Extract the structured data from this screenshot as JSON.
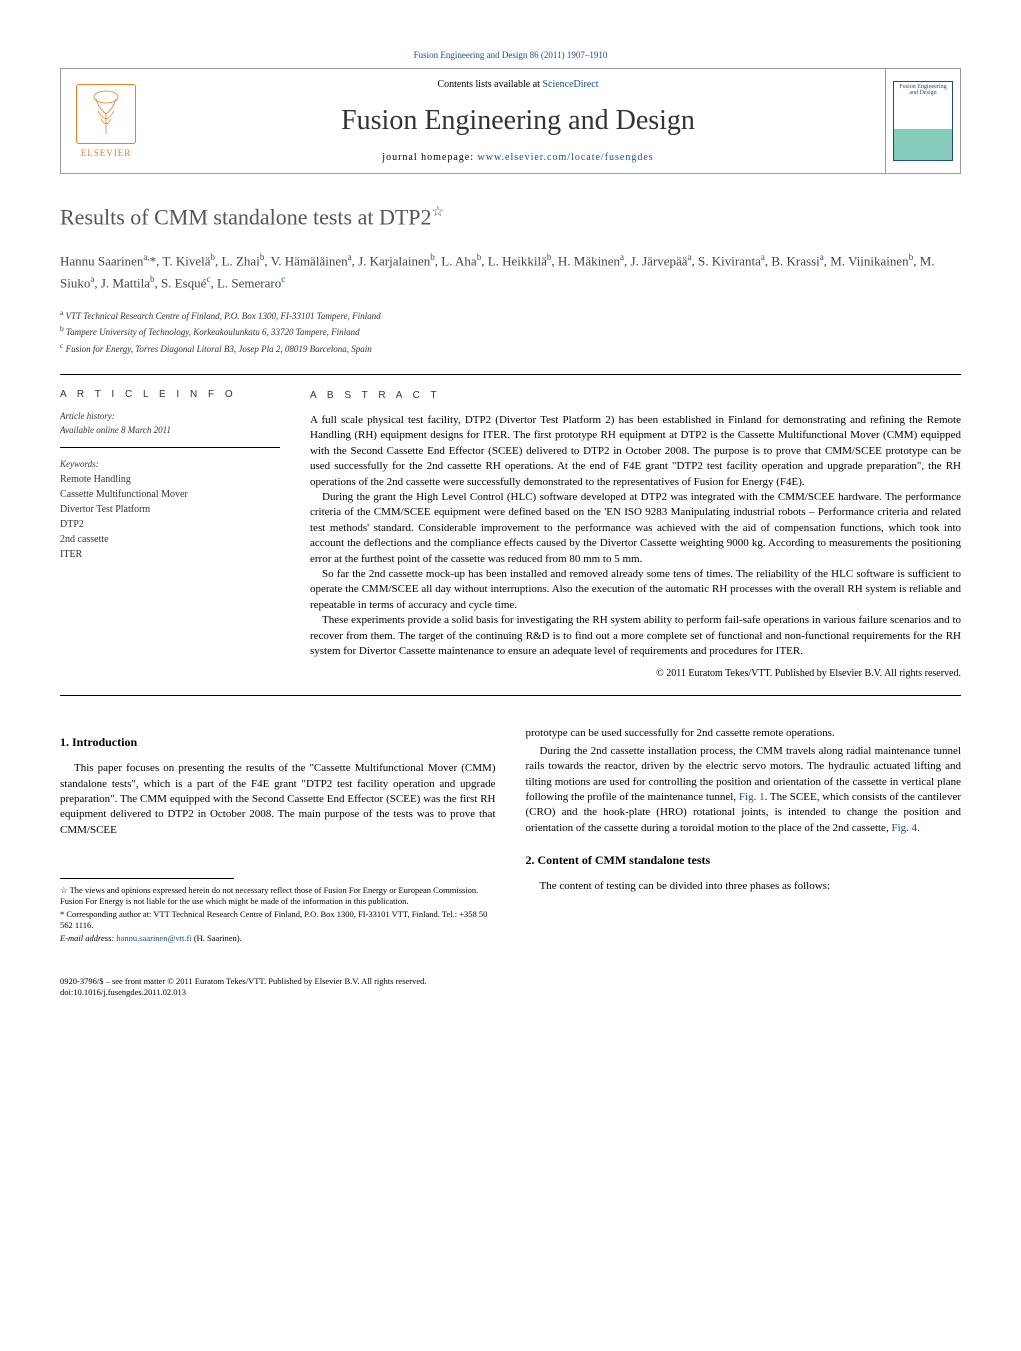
{
  "header": {
    "citation": "Fusion Engineering and Design 86 (2011) 1907–1910",
    "contents_prefix": "Contents lists available at ",
    "contents_link": "ScienceDirect",
    "journal_title": "Fusion Engineering and Design",
    "homepage_prefix": "journal homepage: ",
    "homepage_link": "www.elsevier.com/locate/fusengdes",
    "elsevier": "ELSEVIER",
    "cover_text": "Fusion Engineering and Design"
  },
  "title": {
    "text": "Results of CMM standalone tests at DTP2",
    "star": "☆"
  },
  "authors_html": "Hannu Saarinen<sup>a,</sup><span class='author-star'>*</span>, T. Kivelä<sup>b</sup>, L. Zhai<sup>b</sup>, V. Hämäläinen<sup>a</sup>, J. Karjalainen<sup>b</sup>, L. Aha<sup>b</sup>, L. Heikkilä<sup>b</sup>, H. Mäkinen<sup>a</sup>, J. Järvepää<sup>a</sup>, S. Kiviranta<sup>a</sup>, B. Krassi<sup>a</sup>, M. Viinikainen<sup>b</sup>, M. Siuko<sup>a</sup>, J. Mattila<sup>b</sup>, S. Esqué<sup>c</sup>, L. Semeraro<sup>c</sup>",
  "affiliations": {
    "a": "VTT Technical Research Centre of Finland, P.O. Box 1300, FI-33101 Tampere, Finland",
    "b": "Tampere University of Technology, Korkeakoulunkatu 6, 33720 Tampere, Finland",
    "c": "Fusion for Energy, Torres Diagonal Litoral B3, Josep Pla 2, 08019 Barcelona, Spain"
  },
  "info": {
    "heading": "A R T I C L E   I N F O",
    "history_label": "Article history:",
    "history_value": "Available online 8 March 2011",
    "keywords_label": "Keywords:",
    "keywords": [
      "Remote Handling",
      "Cassette Multifunctional Mover",
      "Divertor Test Platform",
      "DTP2",
      "2nd cassette",
      "ITER"
    ]
  },
  "abstract": {
    "heading": "A B S T R A C T",
    "p1": "A full scale physical test facility, DTP2 (Divertor Test Platform 2) has been established in Finland for demonstrating and refining the Remote Handling (RH) equipment designs for ITER. The first prototype RH equipment at DTP2 is the Cassette Multifunctional Mover (CMM) equipped with the Second Cassette End Effector (SCEE) delivered to DTP2 in October 2008. The purpose is to prove that CMM/SCEE prototype can be used successfully for the 2nd cassette RH operations. At the end of F4E grant \"DTP2 test facility operation and upgrade preparation\", the RH operations of the 2nd cassette were successfully demonstrated to the representatives of Fusion for Energy (F4E).",
    "p2": "During the grant the High Level Control (HLC) software developed at DTP2 was integrated with the CMM/SCEE hardware. The performance criteria of the CMM/SCEE equipment were defined based on the 'EN ISO 9283 Manipulating industrial robots – Performance criteria and related test methods' standard. Considerable improvement to the performance was achieved with the aid of compensation functions, which took into account the deflections and the compliance effects caused by the Divertor Cassette weighting 9000 kg. According to measurements the positioning error at the furthest point of the cassette was reduced from 80 mm to 5 mm.",
    "p3": "So far the 2nd cassette mock-up has been installed and removed already some tens of times. The reliability of the HLC software is sufficient to operate the CMM/SCEE all day without interruptions. Also the execution of the automatic RH processes with the overall RH system is reliable and repeatable in terms of accuracy and cycle time.",
    "p4": "These experiments provide a solid basis for investigating the RH system ability to perform fail-safe operations in various failure scenarios and to recover from them. The target of the continuing R&D is to find out a more complete set of functional and non-functional requirements for the RH system for Divertor Cassette maintenance to ensure an adequate level of requirements and procedures for ITER.",
    "copyright": "© 2011 Euratom Tekes/VTT. Published by Elsevier B.V. All rights reserved."
  },
  "sections": {
    "s1_heading": "1.  Introduction",
    "s1_p1": "This paper focuses on presenting the results of the \"Cassette Multifunctional Mover (CMM) standalone tests\", which is a part of the F4E grant \"DTP2 test facility operation and upgrade preparation\". The CMM equipped with the Second Cassette End Effector (SCEE) was the first RH equipment delivered to DTP2 in October 2008. The main purpose of the tests was to prove that CMM/SCEE",
    "s1_p2": "prototype can be used successfully for 2nd cassette remote operations.",
    "s1_p3_a": "During the 2nd cassette installation process, the CMM travels along radial maintenance tunnel rails towards the reactor, driven by the electric servo motors. The hydraulic actuated lifting and tilting motions are used for controlling the position and orientation of the cassette in vertical plane following the profile of the maintenance tunnel, ",
    "s1_fig1": "Fig. 1",
    "s1_p3_b": ". The SCEE, which consists of the cantilever (CRO) and the hook-plate (HRO) rotational joints, is intended to change the position and orientation of the cassette during a toroidal motion to the place of the 2nd cassette, ",
    "s1_fig4": "Fig. 4",
    "s1_p3_c": ".",
    "s2_heading": "2.  Content of CMM standalone tests",
    "s2_p1": "The content of testing can be divided into three phases as follows:"
  },
  "footnotes": {
    "star": "☆ The views and opinions expressed herein do not necessary reflect those of Fusion For Energy or European Commission. Fusion For Energy is not liable for the use which might be made of the information in this publication.",
    "corr": "* Corresponding author at: VTT Technical Research Centre of Finland, P.O. Box 1300, FI-33101 VTT, Finland. Tel.: +358 50 562 1116.",
    "email_label": "E-mail address: ",
    "email": "hannu.saarinen@vtt.fi",
    "email_suffix": " (H. Saarinen)."
  },
  "footer": {
    "line1": "0920-3796/$ – see front matter © 2011 Euratom Tekes/VTT. Published by Elsevier B.V. All rights reserved.",
    "line2": "doi:10.1016/j.fusengdes.2011.02.013"
  }
}
